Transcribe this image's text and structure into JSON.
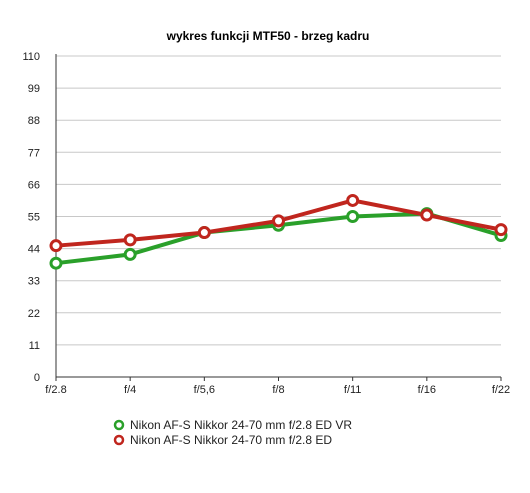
{
  "chart_data": {
    "type": "line",
    "title": "wykres funkcji MTF50 -   brzeg  kadru",
    "xlabel": "",
    "ylabel": "",
    "categories": [
      "f/2.8",
      "f/4",
      "f/5,6",
      "f/8",
      "f/11",
      "f/16",
      "f/22"
    ],
    "ylim": [
      0,
      110
    ],
    "yticks": [
      0,
      11,
      22,
      33,
      44,
      55,
      66,
      77,
      88,
      99,
      110
    ],
    "grid": true,
    "legend_position": "bottom",
    "series": [
      {
        "name": "Nikon AF-S Nikkor 24-70 mm f/2.8 ED VR",
        "color": "#2aa02a",
        "values": [
          39,
          42,
          49.5,
          52,
          55,
          56,
          48.5
        ]
      },
      {
        "name": "Nikon AF-S Nikkor 24-70 mm f/2.8 ED",
        "color": "#c0261e",
        "values": [
          45,
          47,
          49.5,
          53.5,
          60.5,
          55.5,
          50.5
        ]
      }
    ]
  }
}
